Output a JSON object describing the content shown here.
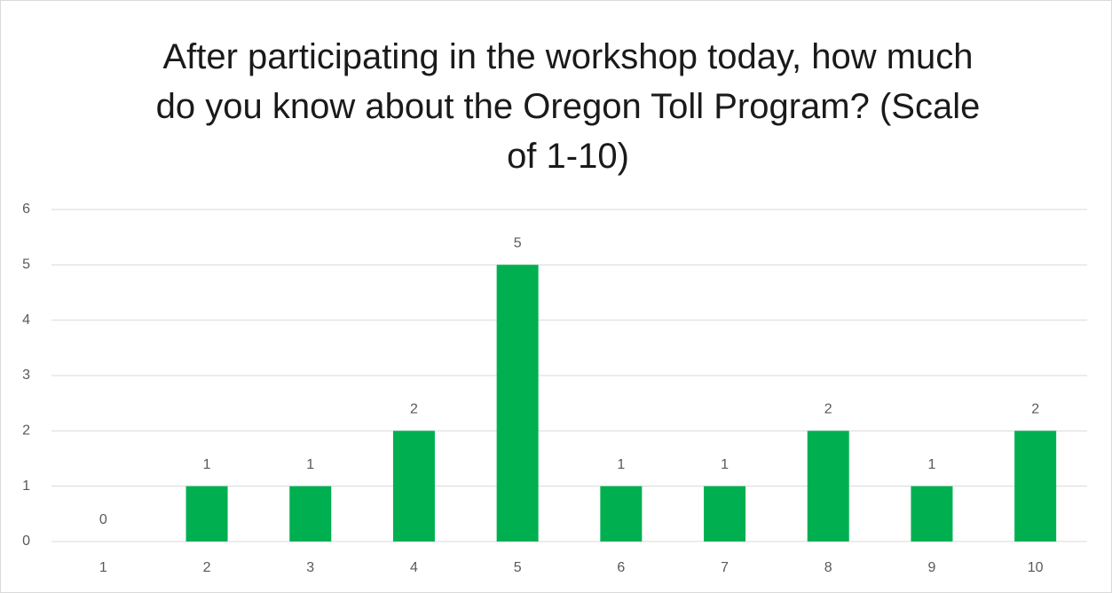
{
  "chart_data": {
    "type": "bar",
    "title": "After participating in the workshop today, how much do you know about the Oregon Toll Program? (Scale of 1-10)",
    "categories": [
      "1",
      "2",
      "3",
      "4",
      "5",
      "6",
      "7",
      "8",
      "9",
      "10"
    ],
    "values": [
      0,
      1,
      1,
      2,
      5,
      1,
      1,
      2,
      1,
      2
    ],
    "color": "#00b050",
    "ylim": [
      0,
      6
    ],
    "yticks": [
      0,
      1,
      2,
      3,
      4,
      5,
      6
    ],
    "grid": true
  }
}
